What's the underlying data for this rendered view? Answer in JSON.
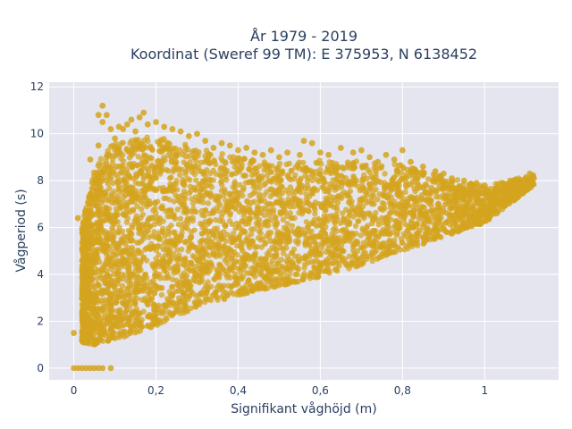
{
  "chart_data": {
    "type": "scatter",
    "title_line1": "År 1979 - 2019",
    "title_line2": "Koordinat (Sweref 99 TM): E 375953, N 6138452",
    "xlabel": "Signifikant våghöjd (m)",
    "ylabel": "Vågperiod (s)",
    "xlim": [
      -0.06,
      1.18
    ],
    "ylim": [
      -0.5,
      12.2
    ],
    "xticks": [
      0,
      0.2,
      0.4,
      0.6,
      0.8,
      1
    ],
    "xtick_labels": [
      "0",
      "0,2",
      "0,4",
      "0,6",
      "0,8",
      "1"
    ],
    "yticks": [
      0,
      2,
      4,
      6,
      8,
      10,
      12
    ],
    "ytick_labels": [
      "0",
      "2",
      "4",
      "6",
      "8",
      "10",
      "12"
    ],
    "grid": true,
    "marker_color": "#d4a41f",
    "plot_bg": "#e5e5ef",
    "series": [
      {
        "points": [
          [
            0.0,
            1.5
          ],
          [
            0.01,
            6.4
          ],
          [
            0.02,
            1.2
          ],
          [
            0.02,
            3.0
          ],
          [
            0.03,
            1.3
          ],
          [
            0.03,
            6.6
          ],
          [
            0.04,
            8.9
          ],
          [
            0.05,
            8.2
          ],
          [
            0.06,
            9.5
          ],
          [
            0.06,
            10.8
          ],
          [
            0.07,
            11.2
          ],
          [
            0.07,
            10.5
          ],
          [
            0.08,
            10.8
          ],
          [
            0.09,
            10.2
          ],
          [
            0.1,
            9.8
          ],
          [
            0.11,
            10.3
          ],
          [
            0.12,
            10.2
          ],
          [
            0.13,
            10.4
          ],
          [
            0.14,
            10.6
          ],
          [
            0.15,
            10.1
          ],
          [
            0.16,
            10.7
          ],
          [
            0.17,
            10.9
          ],
          [
            0.18,
            10.4
          ],
          [
            0.2,
            10.5
          ],
          [
            0.22,
            10.3
          ],
          [
            0.24,
            10.2
          ],
          [
            0.26,
            10.1
          ],
          [
            0.28,
            9.9
          ],
          [
            0.3,
            10.0
          ],
          [
            0.32,
            9.7
          ],
          [
            0.34,
            9.4
          ],
          [
            0.36,
            9.6
          ],
          [
            0.38,
            9.5
          ],
          [
            0.4,
            9.3
          ],
          [
            0.42,
            9.4
          ],
          [
            0.44,
            9.2
          ],
          [
            0.46,
            9.1
          ],
          [
            0.48,
            9.3
          ],
          [
            0.5,
            9.0
          ],
          [
            0.52,
            9.2
          ],
          [
            0.55,
            9.1
          ],
          [
            0.56,
            9.7
          ],
          [
            0.58,
            9.6
          ],
          [
            0.6,
            9.2
          ],
          [
            0.62,
            9.1
          ],
          [
            0.65,
            9.4
          ],
          [
            0.68,
            9.2
          ],
          [
            0.7,
            9.3
          ],
          [
            0.72,
            9.0
          ],
          [
            0.74,
            8.8
          ],
          [
            0.76,
            9.1
          ],
          [
            0.78,
            8.9
          ],
          [
            0.8,
            9.3
          ],
          [
            0.82,
            8.8
          ],
          [
            0.85,
            8.6
          ],
          [
            0.88,
            8.4
          ],
          [
            0.9,
            8.3
          ],
          [
            0.92,
            8.1
          ],
          [
            0.95,
            8.0
          ],
          [
            0.98,
            7.9
          ],
          [
            1.0,
            7.8
          ],
          [
            1.03,
            7.7
          ],
          [
            1.05,
            7.8
          ],
          [
            1.08,
            7.9
          ],
          [
            1.1,
            8.1
          ],
          [
            1.11,
            8.3
          ],
          [
            1.12,
            8.1
          ],
          [
            0.0,
            0.0
          ],
          [
            0.01,
            0.0
          ],
          [
            0.02,
            0.0
          ],
          [
            0.03,
            0.0
          ],
          [
            0.04,
            0.0
          ],
          [
            0.05,
            0.0
          ],
          [
            0.06,
            0.0
          ],
          [
            0.07,
            0.0
          ],
          [
            0.09,
            0.0
          ]
        ],
        "cloud_summary": [
          {
            "x": 0.02,
            "ymin": 1.1,
            "ymax": 6.5
          },
          {
            "x": 0.05,
            "ymin": 1.0,
            "ymax": 9.3
          },
          {
            "x": 0.1,
            "ymin": 1.2,
            "ymax": 10.4
          },
          {
            "x": 0.2,
            "ymin": 1.8,
            "ymax": 10.6
          },
          {
            "x": 0.3,
            "ymin": 2.6,
            "ymax": 10.0
          },
          {
            "x": 0.4,
            "ymin": 3.1,
            "ymax": 9.5
          },
          {
            "x": 0.5,
            "ymin": 3.5,
            "ymax": 9.2
          },
          {
            "x": 0.6,
            "ymin": 3.9,
            "ymax": 9.3
          },
          {
            "x": 0.7,
            "ymin": 4.4,
            "ymax": 9.2
          },
          {
            "x": 0.8,
            "ymin": 5.0,
            "ymax": 9.0
          },
          {
            "x": 0.9,
            "ymin": 5.6,
            "ymax": 8.4
          },
          {
            "x": 1.0,
            "ymin": 6.2,
            "ymax": 7.9
          },
          {
            "x": 1.12,
            "ymin": 7.8,
            "ymax": 8.3
          }
        ]
      }
    ]
  }
}
